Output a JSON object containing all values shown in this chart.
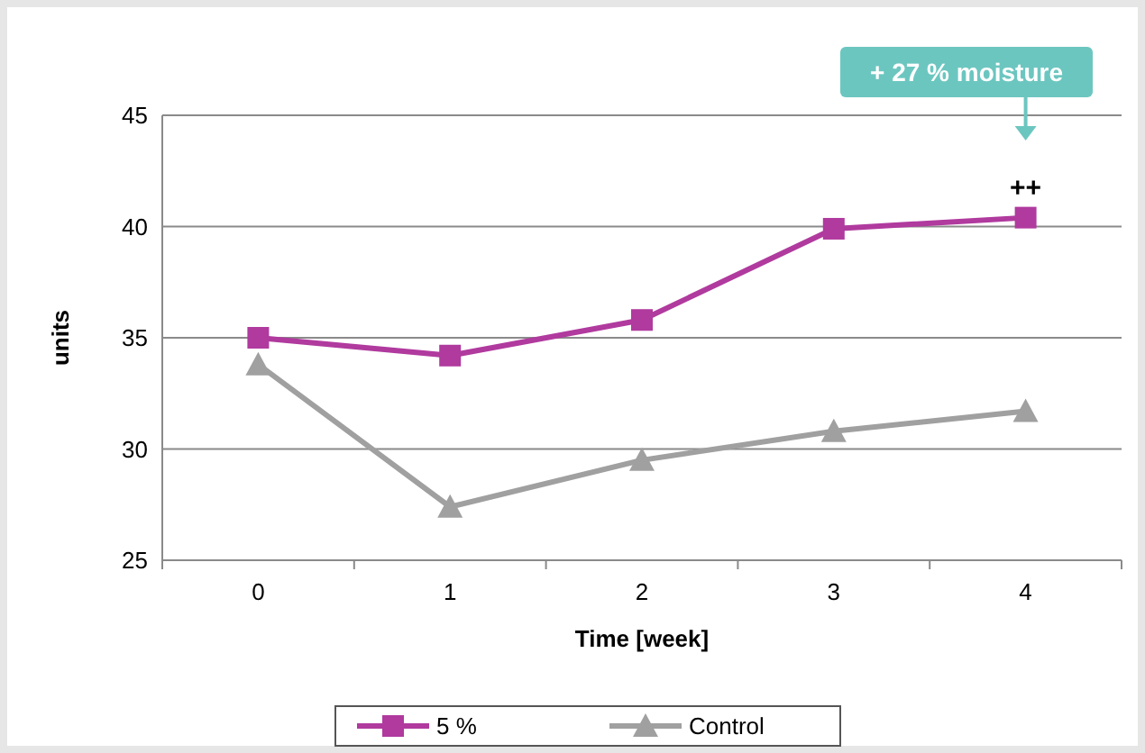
{
  "chart_data": {
    "type": "line",
    "xlabel": "Time [week]",
    "ylabel": "units",
    "categories": [
      "0",
      "1",
      "2",
      "3",
      "4"
    ],
    "series": [
      {
        "name": "5 %",
        "color": "#b03a9e",
        "marker": "square",
        "values": [
          35.0,
          34.2,
          35.8,
          39.9,
          40.4
        ]
      },
      {
        "name": "Control",
        "color": "#a0a0a0",
        "marker": "triangle",
        "values": [
          33.8,
          27.4,
          29.5,
          30.8,
          31.7
        ]
      }
    ],
    "ylim": [
      25,
      45
    ],
    "yticks": [
      25,
      30,
      35,
      40,
      45
    ],
    "grid": "y",
    "legend": "bottom",
    "line_style": "solid",
    "annotations": [
      "+ 27 % moisture",
      {
        "text": "++",
        "x": "4",
        "y": 40.4
      }
    ]
  }
}
